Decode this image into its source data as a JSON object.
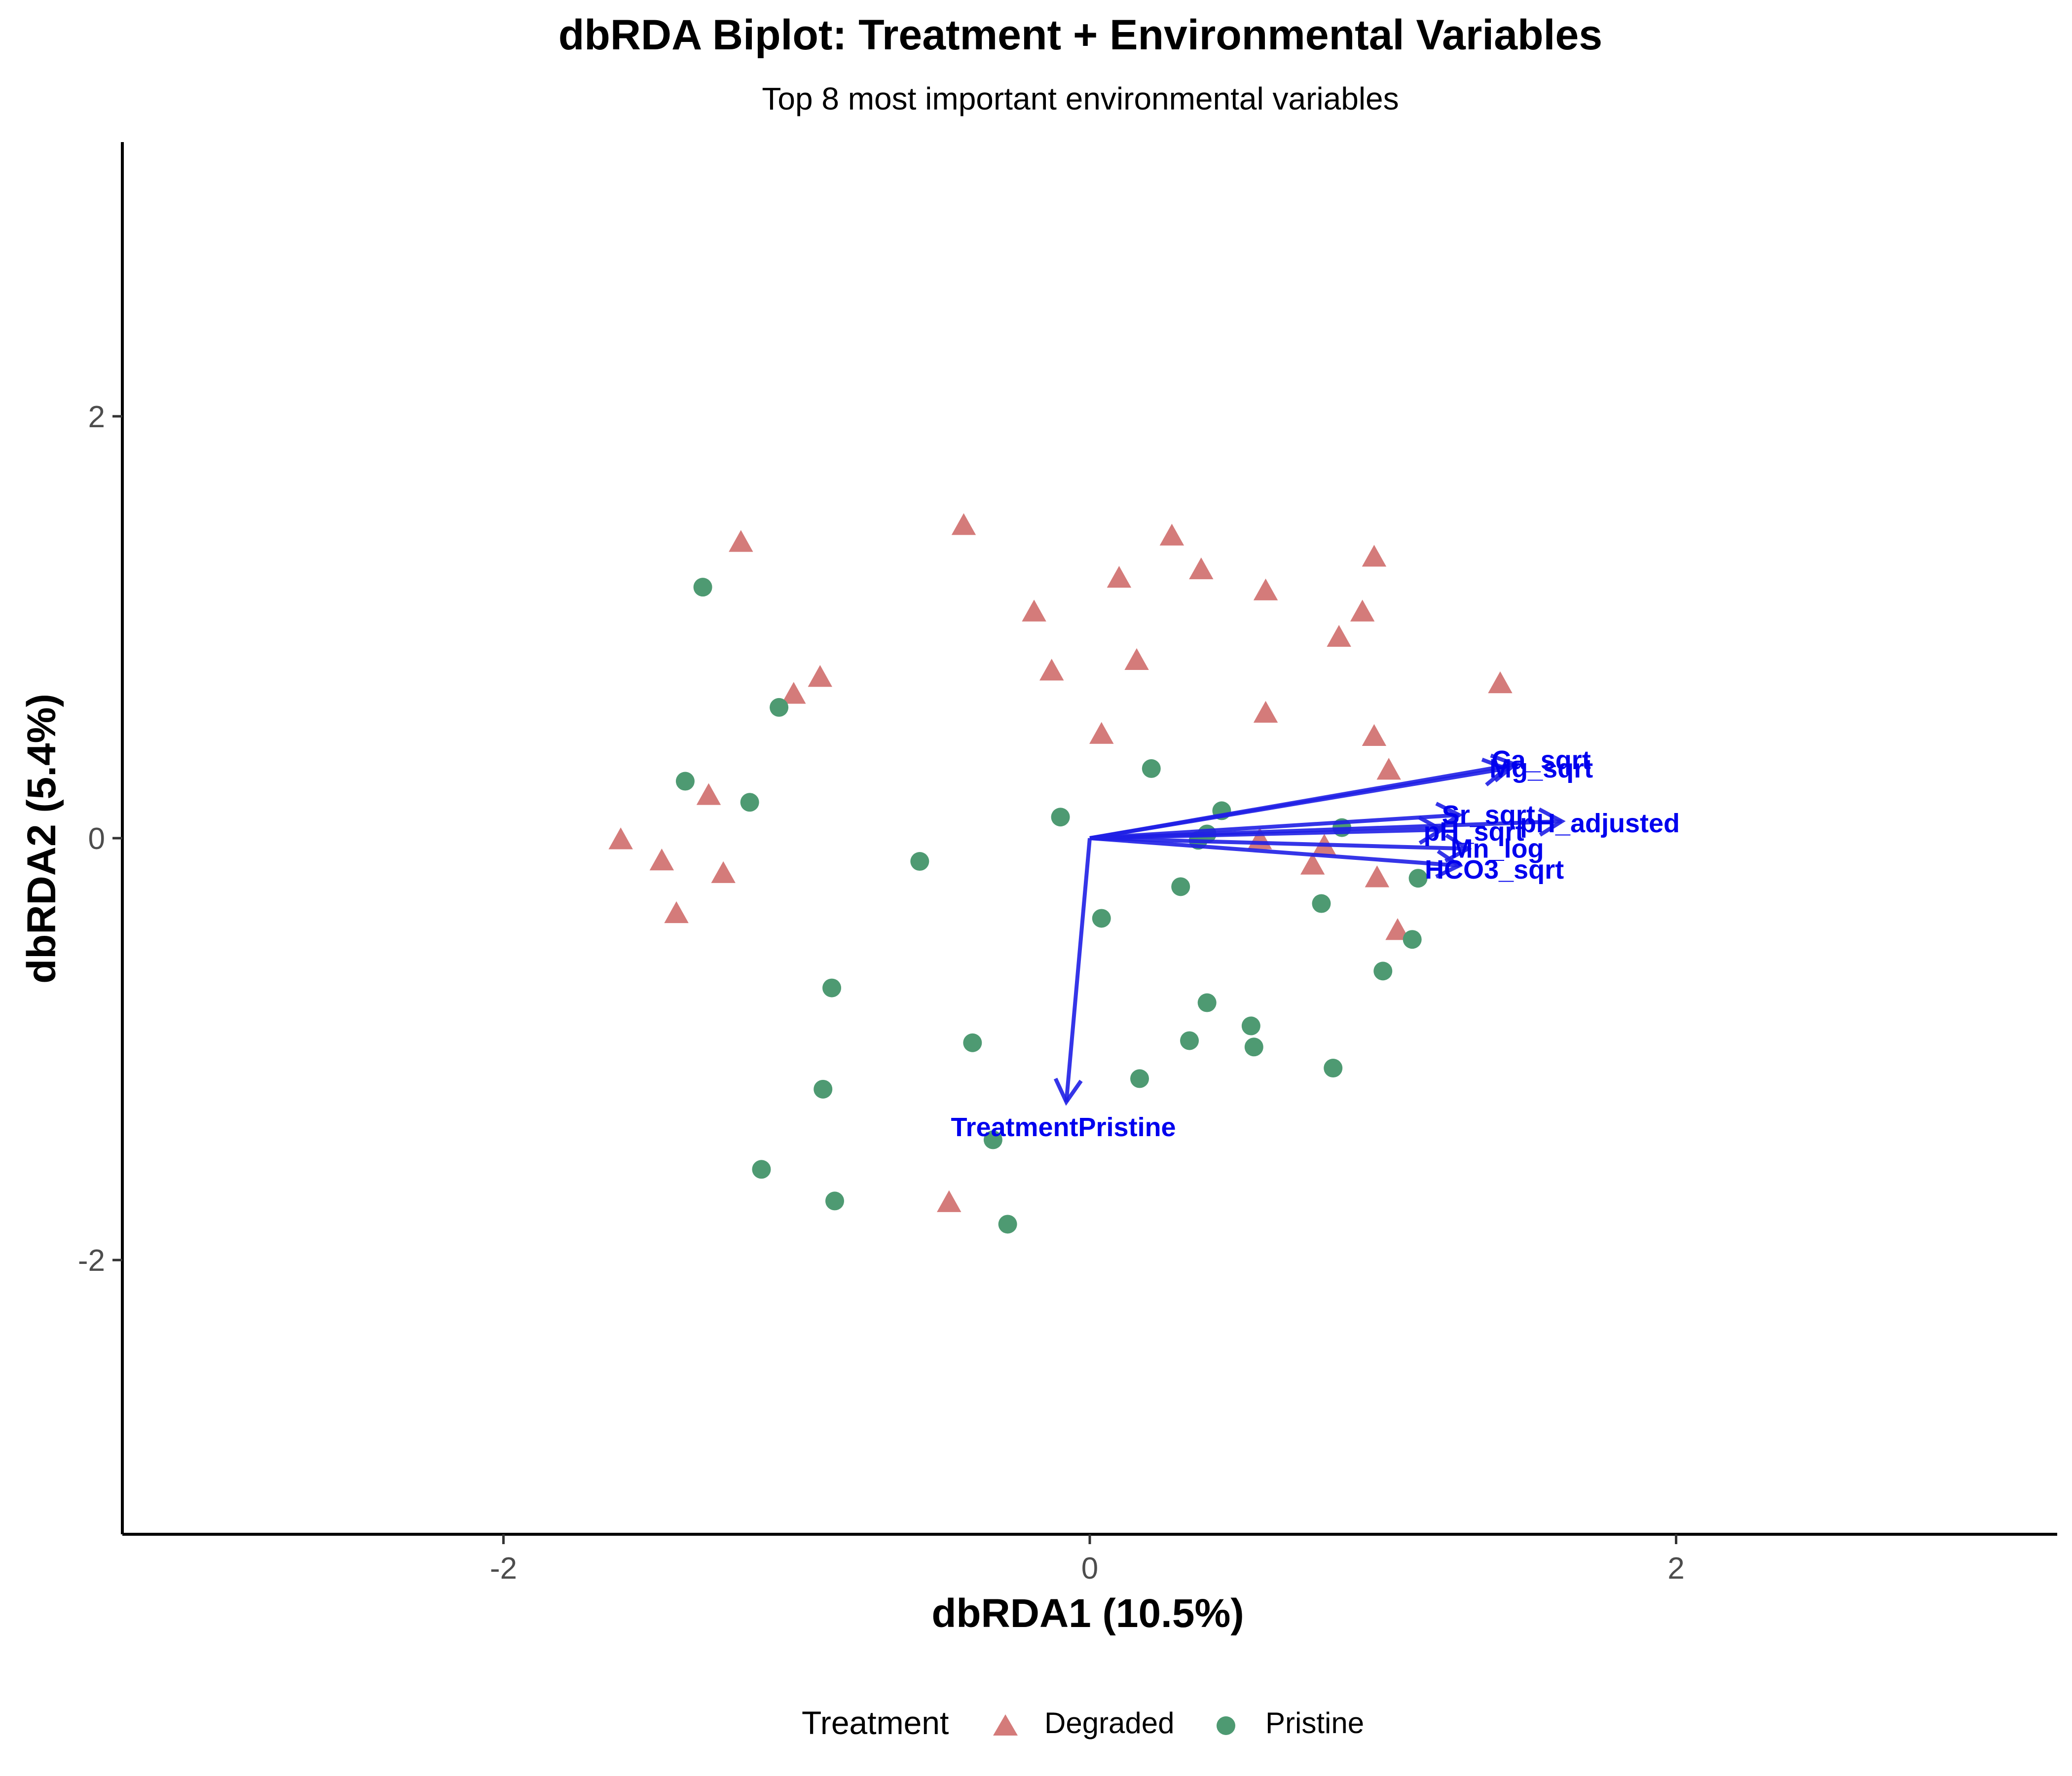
{
  "chart_data": {
    "type": "scatter",
    "title": "dbRDA Biplot: Treatment + Environmental Variables",
    "subtitle": "Top 8 most important environmental variables",
    "xlabel": "dbRDA1 (10.5%)",
    "ylabel": "dbRDA2 (5.4%)",
    "xlim": [
      -3.3,
      3.3
    ],
    "ylim": [
      -3.3,
      3.3
    ],
    "x_ticks": [
      -2,
      0,
      2
    ],
    "y_ticks": [
      -2,
      0,
      2
    ],
    "x_tick_labels": [
      "-2",
      "0",
      "2"
    ],
    "y_tick_labels": [
      "-2",
      "0",
      "2"
    ],
    "grid": false,
    "legend": {
      "title": "Treatment",
      "placement": "bottom"
    },
    "series": [
      {
        "name": "Degraded",
        "marker": "triangle",
        "color": "#D47B7A",
        "points": [
          [
            -1.19,
            1.4
          ],
          [
            -0.43,
            1.48
          ],
          [
            0.28,
            1.43
          ],
          [
            0.38,
            1.27
          ],
          [
            0.1,
            1.23
          ],
          [
            0.6,
            1.17
          ],
          [
            0.97,
            1.33
          ],
          [
            0.93,
            1.07
          ],
          [
            0.85,
            0.95
          ],
          [
            -0.19,
            1.07
          ],
          [
            0.16,
            0.84
          ],
          [
            -0.13,
            0.79
          ],
          [
            1.4,
            0.73
          ],
          [
            -0.92,
            0.76
          ],
          [
            -1.01,
            0.68
          ],
          [
            0.6,
            0.59
          ],
          [
            0.04,
            0.49
          ],
          [
            0.97,
            0.48
          ],
          [
            1.02,
            0.32
          ],
          [
            -1.3,
            0.2
          ],
          [
            -1.6,
            -0.01
          ],
          [
            -1.46,
            -0.11
          ],
          [
            -1.25,
            -0.17
          ],
          [
            -1.41,
            -0.36
          ],
          [
            0.58,
            -0.01
          ],
          [
            0.8,
            -0.04
          ],
          [
            0.76,
            -0.13
          ],
          [
            0.98,
            -0.19
          ],
          [
            1.05,
            -0.44
          ],
          [
            -0.48,
            -1.73
          ]
        ]
      },
      {
        "name": "Pristine",
        "marker": "circle",
        "color": "#4E9A72",
        "points": [
          [
            -1.32,
            1.19
          ],
          [
            -1.06,
            0.62
          ],
          [
            -1.38,
            0.27
          ],
          [
            -1.16,
            0.17
          ],
          [
            0.21,
            0.33
          ],
          [
            -0.1,
            0.1
          ],
          [
            0.45,
            0.13
          ],
          [
            0.4,
            0.02
          ],
          [
            0.37,
            -0.01
          ],
          [
            0.86,
            0.05
          ],
          [
            -0.58,
            -0.11
          ],
          [
            0.31,
            -0.23
          ],
          [
            1.12,
            -0.19
          ],
          [
            0.79,
            -0.31
          ],
          [
            0.04,
            -0.38
          ],
          [
            1.1,
            -0.48
          ],
          [
            1.0,
            -0.63
          ],
          [
            -0.88,
            -0.71
          ],
          [
            0.4,
            -0.78
          ],
          [
            0.55,
            -0.89
          ],
          [
            0.34,
            -0.96
          ],
          [
            0.56,
            -0.99
          ],
          [
            0.83,
            -1.09
          ],
          [
            -0.4,
            -0.97
          ],
          [
            0.17,
            -1.14
          ],
          [
            -0.91,
            -1.19
          ],
          [
            -0.33,
            -1.43
          ],
          [
            -1.12,
            -1.57
          ],
          [
            -0.87,
            -1.72
          ],
          [
            -0.28,
            -1.83
          ]
        ]
      }
    ],
    "arrows": {
      "color": "#1F1FE6",
      "label_color": "#0000EE",
      "origin": [
        0,
        0
      ],
      "items": [
        {
          "name": "Ca_sqrt",
          "x": 1.45,
          "y": 0.35,
          "label_x": 1.54,
          "label_y": 0.37
        },
        {
          "name": "Mg_sqrt",
          "x": 1.42,
          "y": 0.33,
          "label_x": 1.54,
          "label_y": 0.33
        },
        {
          "name": "Sr_sqrt",
          "x": 1.26,
          "y": 0.11,
          "label_x": 1.36,
          "label_y": 0.11
        },
        {
          "name": "pH_adjusted",
          "x": 1.61,
          "y": 0.08,
          "label_x": 1.74,
          "label_y": 0.07
        },
        {
          "name": "pH_sqrt",
          "x": 1.2,
          "y": 0.04,
          "label_x": 1.31,
          "label_y": 0.03
        },
        {
          "name": "Mn_log",
          "x": 1.29,
          "y": -0.05,
          "label_x": 1.39,
          "label_y": -0.05
        },
        {
          "name": "HCO3_sqrt",
          "x": 1.26,
          "y": -0.13,
          "label_x": 1.38,
          "label_y": -0.15
        },
        {
          "name": "TreatmentPristine",
          "x": -0.08,
          "y": -1.25,
          "label_x": -0.09,
          "label_y": -1.37
        }
      ]
    }
  }
}
